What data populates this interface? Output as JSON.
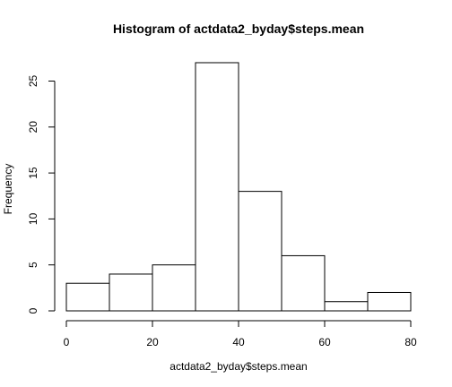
{
  "chart_data": {
    "type": "bar",
    "title": "Histogram of actdata2_byday$steps.mean",
    "xlabel": "actdata2_byday$steps.mean",
    "ylabel": "Frequency",
    "bins": [
      {
        "from": 0,
        "to": 10,
        "count": 3
      },
      {
        "from": 10,
        "to": 20,
        "count": 4
      },
      {
        "from": 20,
        "to": 30,
        "count": 5
      },
      {
        "from": 30,
        "to": 40,
        "count": 27
      },
      {
        "from": 40,
        "to": 50,
        "count": 13
      },
      {
        "from": 50,
        "to": 60,
        "count": 6
      },
      {
        "from": 60,
        "to": 70,
        "count": 1
      },
      {
        "from": 70,
        "to": 80,
        "count": 2
      }
    ],
    "xlim": [
      0,
      80
    ],
    "ylim": [
      0,
      27
    ],
    "x_ticks": [
      0,
      20,
      40,
      60,
      80
    ],
    "y_ticks": [
      0,
      5,
      10,
      15,
      20,
      25
    ],
    "grid": false,
    "bar_fill": "#ffffff",
    "bar_stroke": "#000000"
  }
}
